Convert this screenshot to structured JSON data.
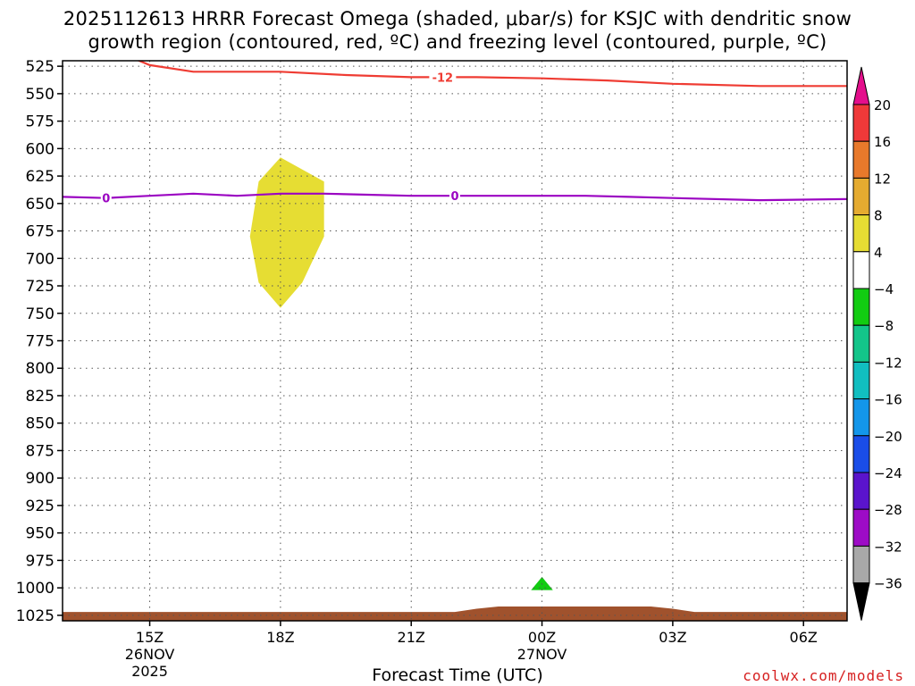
{
  "title_line1": "2025112613 HRRR Forecast Omega (shaded, μbar/s) for KSJC with dendritic snow",
  "title_line2": "growth region (contoured, red, ºC) and freezing level (contoured, purple, ºC)",
  "credit": "coolwx.com/models",
  "chart_data": {
    "type": "time-height cross section",
    "xlabel": "Forecast Time (UTC)",
    "x_ticks": [
      {
        "label": "15Z",
        "sub": [
          "26NOV",
          "2025"
        ],
        "hour": 2
      },
      {
        "label": "18Z",
        "sub": [],
        "hour": 5
      },
      {
        "label": "21Z",
        "sub": [],
        "hour": 8
      },
      {
        "label": "00Z",
        "sub": [
          "27NOV"
        ],
        "hour": 11
      },
      {
        "label": "03Z",
        "sub": [],
        "hour": 14
      },
      {
        "label": "06Z",
        "sub": [],
        "hour": 17
      }
    ],
    "x_range_hours": [
      0,
      18
    ],
    "y_ticks": [
      525,
      550,
      575,
      600,
      625,
      650,
      675,
      700,
      725,
      750,
      775,
      800,
      825,
      850,
      875,
      900,
      925,
      950,
      975,
      1000,
      1025
    ],
    "y_range_hPa": [
      520,
      1030
    ],
    "grid": true,
    "dendritic_contour": {
      "label": "-12",
      "color": "#ef3c33",
      "label_hour": 8.7,
      "points": [
        [
          1.7,
          519
        ],
        [
          2.0,
          524
        ],
        [
          3.0,
          530
        ],
        [
          5.0,
          530
        ],
        [
          6.5,
          533
        ],
        [
          8.0,
          535
        ],
        [
          9.5,
          535
        ],
        [
          11.0,
          536
        ],
        [
          12.5,
          538
        ],
        [
          14.0,
          541
        ],
        [
          16.0,
          543
        ],
        [
          18.0,
          543
        ]
      ]
    },
    "freezing_contour": {
      "label": "0",
      "color": "#9b05c2",
      "label_hours": [
        1.0,
        9.0
      ],
      "points": [
        [
          0,
          644
        ],
        [
          1.0,
          645
        ],
        [
          2.0,
          643
        ],
        [
          3.0,
          641
        ],
        [
          4.0,
          643
        ],
        [
          5.0,
          641
        ],
        [
          6.0,
          641
        ],
        [
          7.0,
          642
        ],
        [
          8.0,
          643
        ],
        [
          9.0,
          643
        ],
        [
          11.0,
          643
        ],
        [
          12.0,
          643
        ],
        [
          13.0,
          644
        ],
        [
          14.0,
          645
        ],
        [
          16.0,
          647
        ],
        [
          18.0,
          646
        ]
      ]
    },
    "omega_shaded": [
      {
        "level": "4 to 8",
        "color": "#e6dd33",
        "polygon": [
          [
            5.0,
            608
          ],
          [
            6.0,
            630
          ],
          [
            6.0,
            680
          ],
          [
            5.5,
            722
          ],
          [
            5.0,
            745
          ],
          [
            4.5,
            722
          ],
          [
            4.3,
            680
          ],
          [
            4.5,
            630
          ]
        ]
      },
      {
        "level": "-8 to -4",
        "color": "#12cc12",
        "polygon": [
          [
            10.75,
            1002
          ],
          [
            11.0,
            990
          ],
          [
            11.25,
            1002
          ]
        ]
      }
    ],
    "terrain": {
      "color": "#a0522d",
      "points": [
        [
          0,
          1022
        ],
        [
          9.0,
          1022
        ],
        [
          9.5,
          1019
        ],
        [
          10.0,
          1017
        ],
        [
          13.5,
          1017
        ],
        [
          14.0,
          1019
        ],
        [
          14.5,
          1022
        ],
        [
          18.0,
          1022
        ]
      ]
    },
    "colorbar": {
      "labels": [
        "20",
        "16",
        "12",
        "8",
        "4",
        "−4",
        "−8",
        "−12",
        "−16",
        "−20",
        "−24",
        "−28",
        "−32",
        "−36"
      ],
      "top_triangle": "#e40f8c",
      "bottom_triangle": "#000000",
      "colors": [
        "#ef3939",
        "#e8792b",
        "#e5ab30",
        "#e6dd33",
        "#ffffff",
        "#12cc12",
        "#13c58a",
        "#11bec0",
        "#1396ea",
        "#1a4de8",
        "#5a14cc",
        "#9d0bc6",
        "#a8a8a8"
      ]
    }
  }
}
